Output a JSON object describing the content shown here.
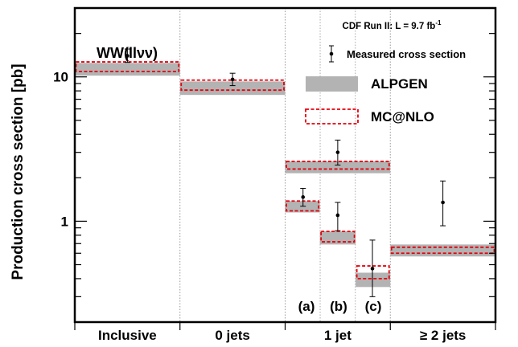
{
  "chart_data": {
    "type": "scatter",
    "title": "CDF Run II: L = 9.7 fb",
    "title_superscript": "-1",
    "ylabel": "Production cross section [pb]",
    "y_scale": "log",
    "ylim": [
      0.2,
      30
    ],
    "y_ticks": [
      {
        "value": 1,
        "label": "1"
      },
      {
        "value": 10,
        "label": "10"
      }
    ],
    "categories": [
      "Inclusive",
      "0 jets",
      "1 jet",
      "≥ 2 jets"
    ],
    "channel_label": "WW(llνν)",
    "sublabels": [
      "(a)",
      "(b)",
      "(c)"
    ],
    "legend": {
      "position": "top-right",
      "entries": [
        {
          "label": "Measured cross section",
          "style": "point"
        },
        {
          "label": "ALPGEN",
          "style": "band",
          "color": "#b3b3b3"
        },
        {
          "label": "MC@NLO",
          "style": "dashed-box",
          "color": "#e8000b"
        }
      ]
    },
    "measured": [
      {
        "bin": "Inclusive",
        "x": 0.5,
        "value": 14.0,
        "err_low": 1.4,
        "err_high": 1.6
      },
      {
        "bin": "0 jets",
        "x": 1.5,
        "value": 9.6,
        "err_low": 0.9,
        "err_high": 1.0
      },
      {
        "bin": "1 jet (a)",
        "x": 2.17,
        "value": 1.47,
        "err_low": 0.2,
        "err_high": 0.22
      },
      {
        "bin": "1 jet",
        "x": 2.5,
        "value": 3.0,
        "err_low": 0.55,
        "err_high": 0.65
      },
      {
        "bin": "1 jet (b)",
        "x": 2.5,
        "value": 1.1,
        "err_low": 0.24,
        "err_high": 0.25
      },
      {
        "bin": "1 jet (c)",
        "x": 2.83,
        "value": 0.47,
        "err_low": 0.17,
        "err_high": 0.27
      },
      {
        "bin": "≥ 2 jets",
        "x": 3.5,
        "value": 1.35,
        "err_low": 0.42,
        "err_high": 0.55
      }
    ],
    "alpgen": [
      {
        "bin": "Inclusive",
        "x0": 0,
        "x1": 1,
        "low": 10.2,
        "high": 12.5
      },
      {
        "bin": "0 jets",
        "x0": 1,
        "x1": 2,
        "low": 7.5,
        "high": 9.3
      },
      {
        "bin": "1 jet",
        "x0": 2,
        "x1": 3,
        "low": 2.15,
        "high": 2.6
      },
      {
        "bin": "1 jet (a)",
        "x0": 2,
        "x1": 2.33,
        "low": 1.15,
        "high": 1.38
      },
      {
        "bin": "1 jet (b)",
        "x0": 2.33,
        "x1": 2.67,
        "low": 0.69,
        "high": 0.85
      },
      {
        "bin": "1 jet (c)",
        "x0": 2.67,
        "x1": 3,
        "low": 0.35,
        "high": 0.44
      },
      {
        "bin": "≥ 2 jets",
        "x0": 3,
        "x1": 4,
        "low": 0.57,
        "high": 0.69
      }
    ],
    "mcnlo": [
      {
        "bin": "Inclusive",
        "x0": 0,
        "x1": 1,
        "low": 10.9,
        "high": 12.7
      },
      {
        "bin": "0 jets",
        "x0": 1,
        "x1": 2,
        "low": 8.1,
        "high": 9.5
      },
      {
        "bin": "1 jet",
        "x0": 2,
        "x1": 3,
        "low": 2.3,
        "high": 2.6
      },
      {
        "bin": "1 jet (a)",
        "x0": 2,
        "x1": 2.33,
        "low": 1.18,
        "high": 1.38
      },
      {
        "bin": "1 jet (b)",
        "x0": 2.33,
        "x1": 2.67,
        "low": 0.72,
        "high": 0.85
      },
      {
        "bin": "1 jet (c)",
        "x0": 2.67,
        "x1": 3,
        "low": 0.4,
        "high": 0.49
      },
      {
        "bin": "≥ 2 jets",
        "x0": 3,
        "x1": 4,
        "low": 0.6,
        "high": 0.66
      }
    ]
  }
}
